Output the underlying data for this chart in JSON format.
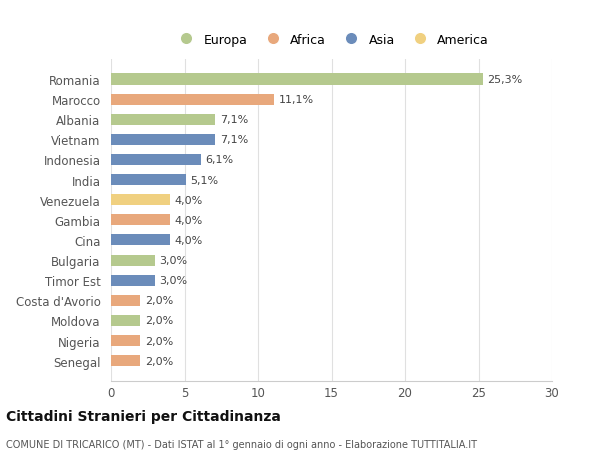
{
  "countries": [
    "Romania",
    "Marocco",
    "Albania",
    "Vietnam",
    "Indonesia",
    "India",
    "Venezuela",
    "Gambia",
    "Cina",
    "Bulgaria",
    "Timor Est",
    "Costa d'Avorio",
    "Moldova",
    "Nigeria",
    "Senegal"
  ],
  "values": [
    25.3,
    11.1,
    7.1,
    7.1,
    6.1,
    5.1,
    4.0,
    4.0,
    4.0,
    3.0,
    3.0,
    2.0,
    2.0,
    2.0,
    2.0
  ],
  "labels": [
    "25,3%",
    "11,1%",
    "7,1%",
    "7,1%",
    "6,1%",
    "5,1%",
    "4,0%",
    "4,0%",
    "4,0%",
    "3,0%",
    "3,0%",
    "2,0%",
    "2,0%",
    "2,0%",
    "2,0%"
  ],
  "continents": [
    "Europa",
    "Africa",
    "Europa",
    "Asia",
    "Asia",
    "Asia",
    "America",
    "Africa",
    "Asia",
    "Europa",
    "Asia",
    "Africa",
    "Europa",
    "Africa",
    "Africa"
  ],
  "colors": {
    "Europa": "#b5c98e",
    "Africa": "#e8a87c",
    "Asia": "#6b8cba",
    "America": "#f0d080"
  },
  "title": "Cittadini Stranieri per Cittadinanza",
  "subtitle": "COMUNE DI TRICARICO (MT) - Dati ISTAT al 1° gennaio di ogni anno - Elaborazione TUTTITALIA.IT",
  "xlim": [
    0,
    30
  ],
  "xticks": [
    0,
    5,
    10,
    15,
    20,
    25,
    30
  ],
  "background_color": "#ffffff",
  "grid_color": "#e0e0e0",
  "bar_height": 0.55,
  "label_fontsize": 8,
  "ytick_fontsize": 8.5,
  "xtick_fontsize": 8.5
}
